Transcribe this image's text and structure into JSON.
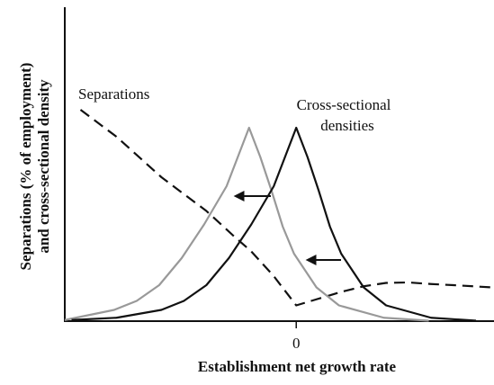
{
  "chart_data": {
    "type": "line",
    "xlabel": "Establishment net growth rate",
    "ylabel": [
      "Separations (% of employment)",
      "and cross-sectional density"
    ],
    "annotations": [
      "Separations",
      "Cross-sectional",
      "densities"
    ],
    "xlim": [
      -10.3,
      8.8
    ],
    "ylim": [
      0,
      14
    ],
    "xticks": [
      0
    ],
    "series": [
      {
        "color": "#111111",
        "dash": true,
        "x": [
          -9.6,
          -8,
          -6,
          -4,
          -2.8,
          -2,
          -1,
          0,
          1,
          2,
          3,
          4,
          5,
          6,
          7,
          8.7
        ],
        "values": [
          9.4,
          8.2,
          6.4,
          4.9,
          3.8,
          3.1,
          2.0,
          0.7,
          1.0,
          1.3,
          1.55,
          1.7,
          1.72,
          1.65,
          1.6,
          1.5
        ]
      },
      {
        "color": "#999999",
        "dash": false,
        "x": [
          -10.3,
          -8.1,
          -7.1,
          -6.1,
          -5.1,
          -4.1,
          -3.1,
          -2.6,
          -2.1,
          -1.6,
          -1.1,
          -0.6,
          -0.1,
          0.9,
          1.9,
          3.9,
          5.9
        ],
        "values": [
          0.05,
          0.5,
          0.9,
          1.6,
          2.8,
          4.3,
          6.0,
          7.3,
          8.6,
          7.3,
          5.8,
          4.2,
          3.0,
          1.5,
          0.7,
          0.15,
          0.02
        ]
      },
      {
        "color": "#111111",
        "dash": false,
        "x": [
          -10,
          -8,
          -6,
          -5,
          -4,
          -3,
          -2,
          -1,
          -0.5,
          0,
          0.5,
          1,
          1.5,
          2,
          3,
          4,
          6,
          8
        ],
        "values": [
          0.05,
          0.15,
          0.5,
          0.9,
          1.6,
          2.8,
          4.3,
          6.0,
          7.3,
          8.6,
          7.3,
          5.8,
          4.2,
          3.0,
          1.5,
          0.7,
          0.15,
          0.02
        ]
      }
    ]
  }
}
